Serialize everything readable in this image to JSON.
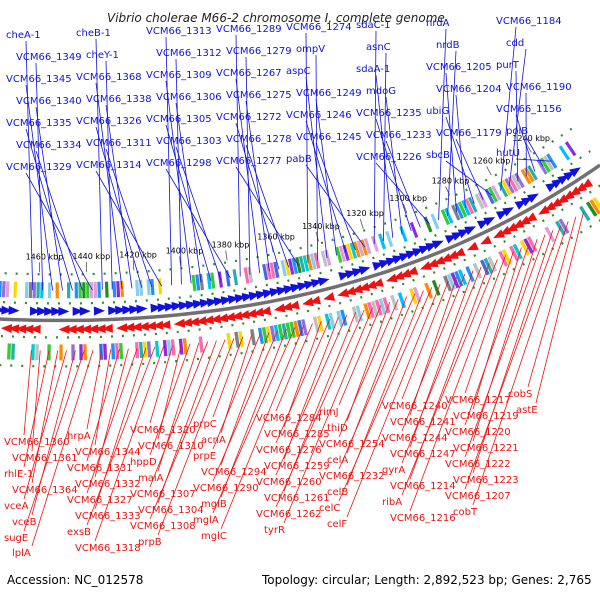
{
  "title": "Vibrio cholerae M66-2 chromosome I, complete genome",
  "accession": "Accession: NC_012578",
  "stats": "Topology: circular; Length: 2,892,523 bp; Genes: 2,765",
  "colors": {
    "forward": "#1111dd",
    "reverse": "#ee1111",
    "backbone": "#707070",
    "tick": "#2e8b2e"
  },
  "ticks": [
    "1460 kbp",
    "1440 kbp",
    "1420 kbp",
    "1400 kbp",
    "1380 kbp",
    "1360 kbp",
    "1340 kbp",
    "1320 kbp",
    "1300 kbp",
    "1280 kbp",
    "1260 kbp",
    "1240 kbp"
  ],
  "forward_genes": [
    "cheA-1",
    "VCM66_1349",
    "VCM66_1345",
    "VCM66_1340",
    "VCM66_1335",
    "VCM66_1334",
    "VCM66_1329",
    "cheB-1",
    "cheY-1",
    "VCM66_1368",
    "VCM66_1338",
    "VCM66_1326",
    "VCM66_1311",
    "VCM66_1314",
    "VCM66_1313",
    "VCM66_1312",
    "VCM66_1309",
    "VCM66_1306",
    "VCM66_1305",
    "VCM66_1303",
    "VCM66_1298",
    "VCM66_1289",
    "VCM66_1279",
    "VCM66_1267",
    "VCM66_1275",
    "VCM66_1272",
    "VCM66_1278",
    "VCM66_1277",
    "VCM66_1274",
    "ompV",
    "aspC",
    "VCM66_1249",
    "VCM66_1246",
    "VCM66_1245",
    "pabB",
    "sdaC-1",
    "asnC",
    "sdaA-1",
    "mdoG",
    "VCM66_1235",
    "VCM66_1233",
    "VCM66_1226",
    "nrdA",
    "nrdB",
    "VCM66_1205",
    "VCM66_1204",
    "ubiG",
    "VCM66_1179",
    "sbcB",
    "VCM66_1184",
    "cdd",
    "purT",
    "VCM66_1190",
    "VCM66_1156",
    "polB",
    "hutU"
  ],
  "reverse_genes": [
    "VCM66_1360",
    "VCM66_1361",
    "rhlE-1",
    "VCM66_1364",
    "vceA",
    "vceB",
    "sugE",
    "lplA",
    "hrpA",
    "VCM66_1344",
    "VCM66_1331",
    "VCM66_1332",
    "VCM66_1327",
    "VCM66_1333",
    "exsB",
    "VCM66_1318",
    "VCM66_1320",
    "VCM66_1310",
    "hppD",
    "maiA",
    "VCM66_1307",
    "VCM66_1304",
    "VCM66_1308",
    "prpB",
    "prpC",
    "acnA",
    "prpE",
    "VCM66_1294",
    "VCM66_1290",
    "mglB",
    "mglA",
    "mglC",
    "VCM66_1284",
    "VCM66_1285",
    "VCM66_1276",
    "VCM66_1259",
    "VCM66_1260",
    "VCM66_1261",
    "VCM66_1262",
    "tyrR",
    "rimJ",
    "thiD",
    "VCM66_1254",
    "celA",
    "VCM66_1232",
    "celB",
    "celC",
    "celF",
    "VCM66_1240",
    "VCM66_1241",
    "VCM66_1244",
    "VCM66_1247",
    "gyrA",
    "VCM66_1214",
    "ribA",
    "VCM66_1216",
    "VCM66_1217",
    "VCM66_1219",
    "VCM66_1220",
    "VCM66_1221",
    "VCM66_1222",
    "VCM66_1223",
    "VCM66_1207",
    "cobT",
    "cobS",
    "astE"
  ]
}
